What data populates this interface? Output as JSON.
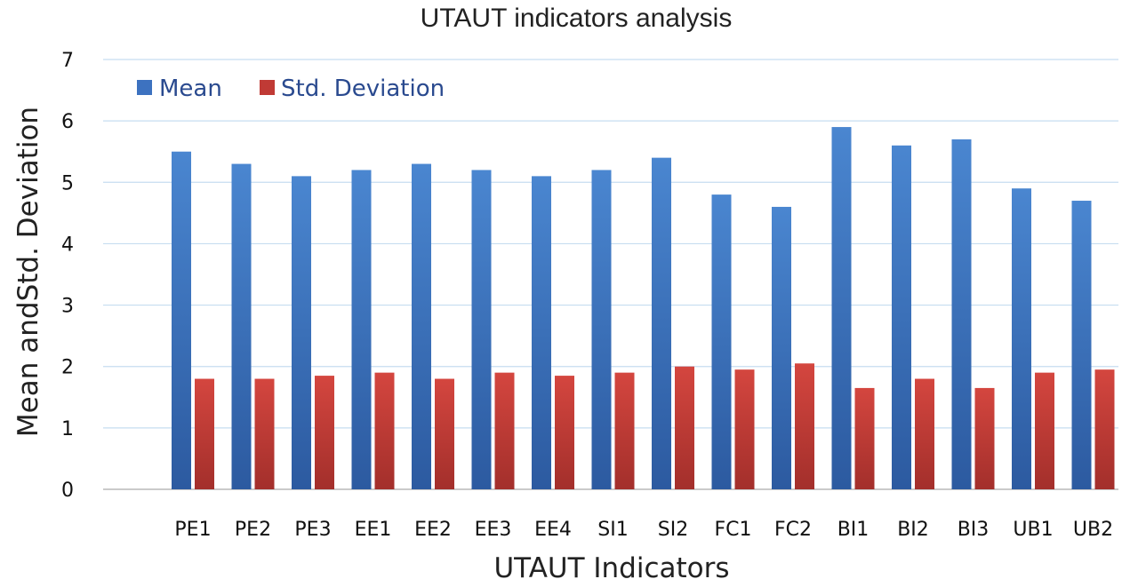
{
  "chart_data": {
    "type": "bar",
    "title": "UTAUT indicators analysis",
    "xlabel": "UTAUT Indicators",
    "ylabel": "Mean andStd. Deviation",
    "ylim": [
      0,
      7
    ],
    "yticks": [
      "0",
      "1",
      "2",
      "3",
      "4",
      "5",
      "6",
      "7"
    ],
    "grid": true,
    "legend_position": "top-left",
    "categories": [
      "PE1",
      "PE2",
      "PE3",
      "EE1",
      "EE2",
      "EE3",
      "EE4",
      "SI1",
      "SI2",
      "FC1",
      "FC2",
      "BI1",
      "BI2",
      "BI3",
      "UB1",
      "UB2"
    ],
    "series": [
      {
        "name": "Mean",
        "color": "#3d72c0",
        "values": [
          5.5,
          5.3,
          5.1,
          5.2,
          5.3,
          5.2,
          5.1,
          5.2,
          5.4,
          4.8,
          4.6,
          5.9,
          5.6,
          5.7,
          4.9,
          4.7
        ]
      },
      {
        "name": "Std. Deviation",
        "color": "#c03a35",
        "values": [
          1.8,
          1.8,
          1.85,
          1.9,
          1.8,
          1.9,
          1.85,
          1.9,
          2.0,
          1.95,
          2.05,
          1.65,
          1.8,
          1.65,
          1.9,
          1.95
        ]
      }
    ]
  }
}
